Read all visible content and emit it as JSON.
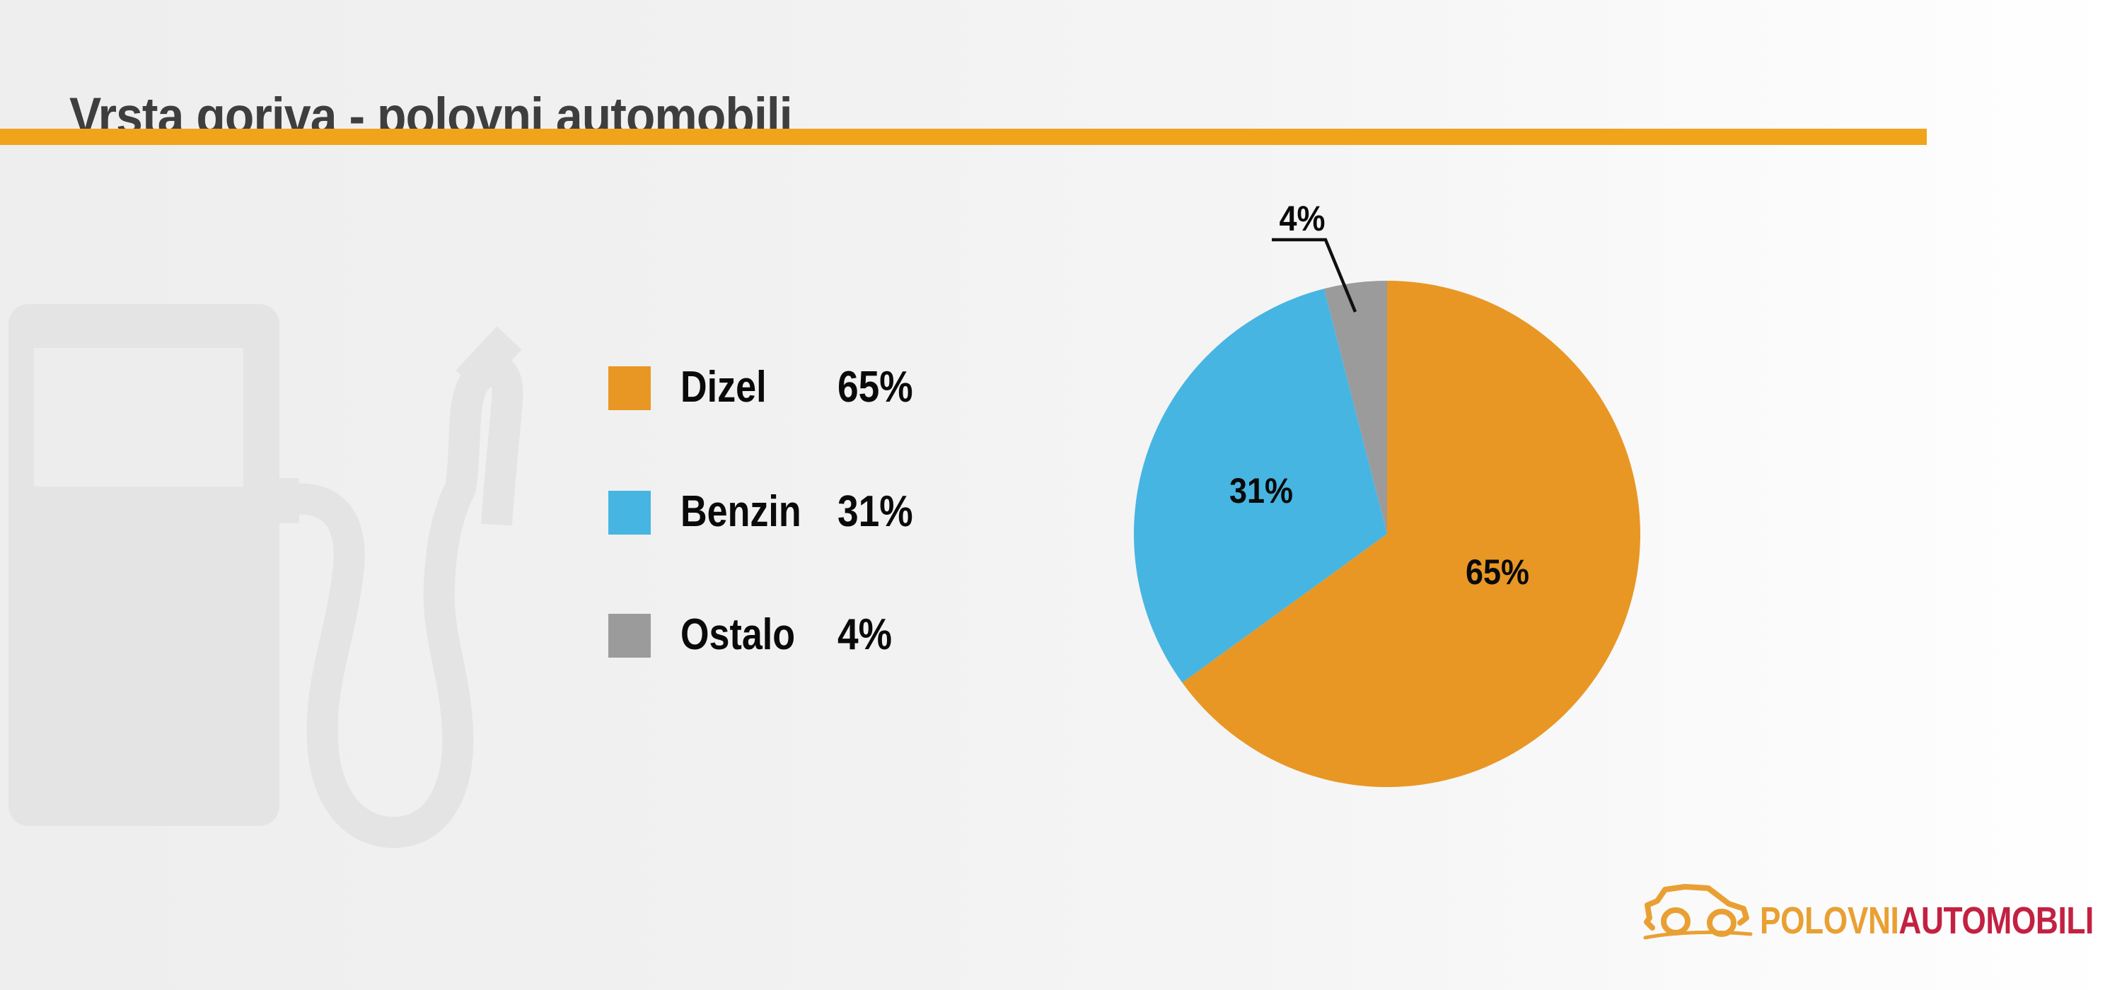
{
  "header": {
    "title": "Vrsta goriva - polovni automobili",
    "title_color": "#3E3E3E",
    "accent_color": "#F0A41C"
  },
  "chart_data": {
    "type": "pie",
    "title": "Vrsta goriva - polovni automobili",
    "categories": [
      "Dizel",
      "Benzin",
      "Ostalo"
    ],
    "values": [
      65,
      31,
      4
    ],
    "labels": [
      "65%",
      "31%",
      "4%"
    ],
    "colors": [
      "#E89724",
      "#47B5E2",
      "#9B9B9B"
    ],
    "unit": "%",
    "start_angle_deg": 0,
    "direction": "clockwise",
    "legend_position": "left",
    "callout": {
      "target": "Ostalo",
      "label": "4%"
    }
  },
  "watermark": {
    "icon": "fuel-pump",
    "color": "#E4E4E4",
    "window_color": "#EDEDED"
  },
  "logo": {
    "text_primary": "POLOVNI",
    "text_secondary": "AUTOMOBILI",
    "primary_color": "#E9A033",
    "secondary_color": "#C32142"
  }
}
